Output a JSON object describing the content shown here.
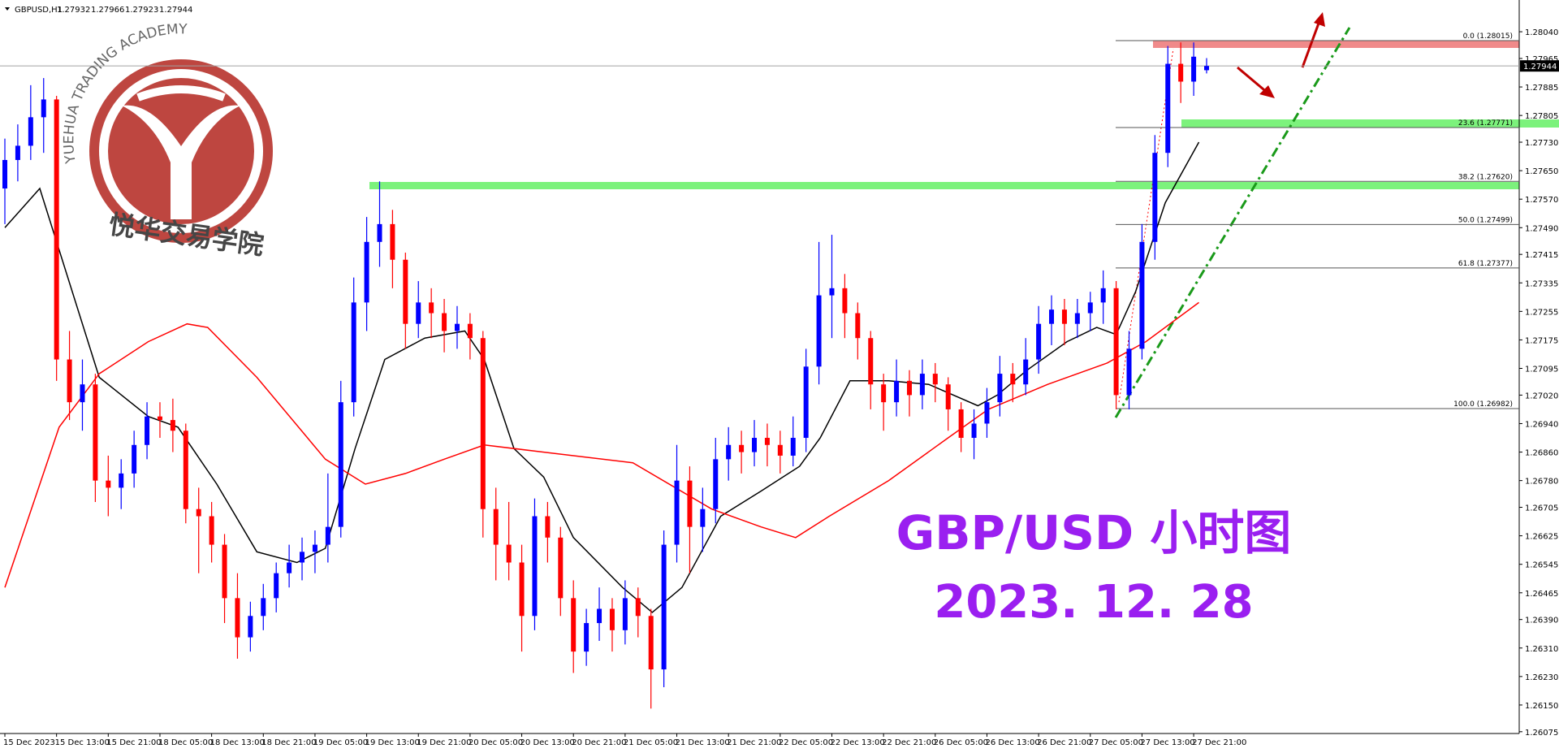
{
  "header": {
    "symbol": "GBPUSD,H1",
    "ohlc": [
      1.27932,
      1.27966,
      1.27923,
      1.27944
    ]
  },
  "watermark": {
    "academy": "YUEHUA TRADING ACADEMY",
    "academy_cn": "悦华交易学院"
  },
  "chart_data": {
    "type": "candlestick",
    "title": "GBP/USD 小时图",
    "subtitle": "2023. 12. 28",
    "up_color": "#0000ff",
    "down_color": "#ff0000",
    "candles": [
      [
        1.276,
        1.2774,
        1.275,
        1.2768
      ],
      [
        1.2768,
        1.2778,
        1.2762,
        1.2772
      ],
      [
        1.2772,
        1.2789,
        1.2768,
        1.278
      ],
      [
        1.278,
        1.2791,
        1.277,
        1.2785
      ],
      [
        1.2785,
        1.2786,
        1.2706,
        1.2712
      ],
      [
        1.2712,
        1.272,
        1.2695,
        1.27
      ],
      [
        1.27,
        1.2712,
        1.2692,
        1.2705
      ],
      [
        1.2705,
        1.2708,
        1.2672,
        1.2678
      ],
      [
        1.2678,
        1.2685,
        1.2668,
        1.2676
      ],
      [
        1.2676,
        1.2684,
        1.267,
        1.268
      ],
      [
        1.268,
        1.2692,
        1.2676,
        1.2688
      ],
      [
        1.2688,
        1.27,
        1.2684,
        1.2696
      ],
      [
        1.2696,
        1.27,
        1.269,
        1.2695
      ],
      [
        1.2695,
        1.2701,
        1.2686,
        1.2692
      ],
      [
        1.2692,
        1.2694,
        1.2666,
        1.267
      ],
      [
        1.267,
        1.2676,
        1.2652,
        1.2668
      ],
      [
        1.2668,
        1.2672,
        1.2655,
        1.266
      ],
      [
        1.266,
        1.2663,
        1.2638,
        1.2645
      ],
      [
        1.2645,
        1.2652,
        1.2628,
        1.2634
      ],
      [
        1.2634,
        1.2644,
        1.263,
        1.264
      ],
      [
        1.264,
        1.2649,
        1.2636,
        1.2645
      ],
      [
        1.2645,
        1.2655,
        1.2641,
        1.2652
      ],
      [
        1.2652,
        1.266,
        1.2648,
        1.2655
      ],
      [
        1.2655,
        1.2662,
        1.265,
        1.2658
      ],
      [
        1.2658,
        1.2664,
        1.2652,
        1.266
      ],
      [
        1.266,
        1.268,
        1.2655,
        1.2665
      ],
      [
        1.2665,
        1.2706,
        1.2662,
        1.27
      ],
      [
        1.27,
        1.2735,
        1.2696,
        1.2728
      ],
      [
        1.2728,
        1.2752,
        1.272,
        1.2745
      ],
      [
        1.2745,
        1.2762,
        1.2738,
        1.275
      ],
      [
        1.275,
        1.2754,
        1.2732,
        1.274
      ],
      [
        1.274,
        1.2742,
        1.2715,
        1.2722
      ],
      [
        1.2722,
        1.2734,
        1.2718,
        1.2728
      ],
      [
        1.2728,
        1.2732,
        1.2718,
        1.2725
      ],
      [
        1.2725,
        1.2729,
        1.2714,
        1.272
      ],
      [
        1.272,
        1.2727,
        1.2715,
        1.2722
      ],
      [
        1.2722,
        1.2725,
        1.2712,
        1.2718
      ],
      [
        1.2718,
        1.272,
        1.2662,
        1.267
      ],
      [
        1.267,
        1.2676,
        1.265,
        1.266
      ],
      [
        1.266,
        1.2672,
        1.265,
        1.2655
      ],
      [
        1.2655,
        1.266,
        1.263,
        1.264
      ],
      [
        1.264,
        1.2673,
        1.2636,
        1.2668
      ],
      [
        1.2668,
        1.2672,
        1.2655,
        1.2662
      ],
      [
        1.2662,
        1.2665,
        1.264,
        1.2645
      ],
      [
        1.2645,
        1.265,
        1.2624,
        1.263
      ],
      [
        1.263,
        1.2642,
        1.2626,
        1.2638
      ],
      [
        1.2638,
        1.2648,
        1.2633,
        1.2642
      ],
      [
        1.2642,
        1.2645,
        1.263,
        1.2636
      ],
      [
        1.2636,
        1.265,
        1.2632,
        1.2645
      ],
      [
        1.2645,
        1.2648,
        1.2634,
        1.264
      ],
      [
        1.264,
        1.2642,
        1.2614,
        1.2625
      ],
      [
        1.2625,
        1.2664,
        1.262,
        1.266
      ],
      [
        1.266,
        1.2688,
        1.2655,
        1.2678
      ],
      [
        1.2678,
        1.2682,
        1.2652,
        1.2665
      ],
      [
        1.2665,
        1.2676,
        1.2658,
        1.267
      ],
      [
        1.267,
        1.269,
        1.2666,
        1.2684
      ],
      [
        1.2684,
        1.2693,
        1.2678,
        1.2688
      ],
      [
        1.2688,
        1.2692,
        1.268,
        1.2686
      ],
      [
        1.2686,
        1.2695,
        1.2682,
        1.269
      ],
      [
        1.269,
        1.2694,
        1.2682,
        1.2688
      ],
      [
        1.2688,
        1.2692,
        1.268,
        1.2685
      ],
      [
        1.2685,
        1.2696,
        1.2682,
        1.269
      ],
      [
        1.269,
        1.2715,
        1.2686,
        1.271
      ],
      [
        1.271,
        1.2745,
        1.2705,
        1.273
      ],
      [
        1.273,
        1.2747,
        1.2718,
        1.2732
      ],
      [
        1.2732,
        1.2736,
        1.2718,
        1.2725
      ],
      [
        1.2725,
        1.2728,
        1.2712,
        1.2718
      ],
      [
        1.2718,
        1.272,
        1.2698,
        1.2705
      ],
      [
        1.2705,
        1.2708,
        1.2692,
        1.27
      ],
      [
        1.27,
        1.2712,
        1.2696,
        1.2706
      ],
      [
        1.2706,
        1.2709,
        1.2696,
        1.2702
      ],
      [
        1.2702,
        1.2712,
        1.2698,
        1.2708
      ],
      [
        1.2708,
        1.2711,
        1.27,
        1.2705
      ],
      [
        1.2705,
        1.2707,
        1.2692,
        1.2698
      ],
      [
        1.2698,
        1.27,
        1.2686,
        1.269
      ],
      [
        1.269,
        1.2698,
        1.2684,
        1.2694
      ],
      [
        1.2694,
        1.2704,
        1.269,
        1.27
      ],
      [
        1.27,
        1.2713,
        1.2696,
        1.2708
      ],
      [
        1.2708,
        1.2711,
        1.27,
        1.2705
      ],
      [
        1.2705,
        1.2718,
        1.2702,
        1.2712
      ],
      [
        1.2712,
        1.2727,
        1.2708,
        1.2722
      ],
      [
        1.2722,
        1.273,
        1.2716,
        1.2726
      ],
      [
        1.2726,
        1.2729,
        1.2716,
        1.2722
      ],
      [
        1.2722,
        1.2729,
        1.2718,
        1.2725
      ],
      [
        1.2725,
        1.2731,
        1.272,
        1.2728
      ],
      [
        1.2728,
        1.2737,
        1.2722,
        1.2732
      ],
      [
        1.2732,
        1.2734,
        1.2698,
        1.2702
      ],
      [
        1.2702,
        1.272,
        1.2698,
        1.2715
      ],
      [
        1.2715,
        1.275,
        1.2712,
        1.2745
      ],
      [
        1.2745,
        1.2775,
        1.274,
        1.277
      ],
      [
        1.277,
        1.28,
        1.2766,
        1.2795
      ],
      [
        1.2795,
        1.2801,
        1.2784,
        1.279
      ],
      [
        1.279,
        1.2801,
        1.2786,
        1.2797
      ],
      [
        1.27932,
        1.27966,
        1.27923,
        1.27944
      ]
    ],
    "series": [
      {
        "color": "#000000",
        "x": [
          0,
          2.7,
          7.3,
          11.1,
          13.4,
          16.4,
          19.5,
          22.6,
          24.8,
          27.1,
          29.4,
          32.5,
          35.6,
          37.1,
          39.4,
          41.7,
          44,
          47.8,
          50.1,
          52.4,
          55.4,
          58.5,
          61.5,
          63.1,
          65.4,
          68.4,
          71.5,
          75.3,
          76.8,
          79.1,
          82.2,
          84.5,
          86,
          87.5,
          89.8,
          92.4
        ],
        "values": [
          1.2749,
          1.276,
          1.2707,
          1.2696,
          1.2693,
          1.2677,
          1.2658,
          1.2655,
          1.2659,
          1.2687,
          1.2712,
          1.2718,
          1.272,
          1.2712,
          1.2687,
          1.2679,
          1.2662,
          1.2648,
          1.2641,
          1.2648,
          1.2668,
          1.2675,
          1.2682,
          1.269,
          1.2706,
          1.2706,
          1.2705,
          1.2699,
          1.2702,
          1.2709,
          1.2717,
          1.2721,
          1.2719,
          1.2731,
          1.2756,
          1.2773
        ]
      },
      {
        "color": "#ff0000",
        "x": [
          0,
          4.2,
          7.3,
          11.1,
          14.1,
          15.7,
          19.5,
          24.8,
          27.9,
          31,
          34,
          37.1,
          41.7,
          48.6,
          54.7,
          58.5,
          61.2,
          63.8,
          68.4,
          73,
          76.1,
          80.7,
          85.3,
          88.3,
          92.4
        ],
        "values": [
          1.2648,
          1.2693,
          1.2708,
          1.2717,
          1.2722,
          1.2721,
          1.2707,
          1.2684,
          1.2677,
          1.268,
          1.2684,
          1.2688,
          1.2686,
          1.2683,
          1.267,
          1.2665,
          1.2662,
          1.2668,
          1.2678,
          1.269,
          1.2698,
          1.2705,
          1.2711,
          1.2717,
          1.2728
        ]
      }
    ],
    "ylim": [
      1.2607,
      1.2812
    ],
    "yticks": [
      {
        "value": 1.2804,
        "label": "1.28040"
      },
      {
        "value": 1.27965,
        "label": "1.27965"
      },
      {
        "value": 1.27885,
        "label": "1.27885"
      },
      {
        "value": 1.27805,
        "label": "1.27805"
      },
      {
        "value": 1.2773,
        "label": "1.27730"
      },
      {
        "value": 1.2765,
        "label": "1.27650"
      },
      {
        "value": 1.2757,
        "label": "1.27570"
      },
      {
        "value": 1.2749,
        "label": "1.27490"
      },
      {
        "value": 1.27415,
        "label": "1.27415"
      },
      {
        "value": 1.27335,
        "label": "1.27335"
      },
      {
        "value": 1.27255,
        "label": "1.27255"
      },
      {
        "value": 1.27175,
        "label": "1.27175"
      },
      {
        "value": 1.27095,
        "label": "1.27095"
      },
      {
        "value": 1.2702,
        "label": "1.27020"
      },
      {
        "value": 1.2694,
        "label": "1.26940"
      },
      {
        "value": 1.2686,
        "label": "1.26860"
      },
      {
        "value": 1.2678,
        "label": "1.26780"
      },
      {
        "value": 1.26705,
        "label": "1.26705"
      },
      {
        "value": 1.26625,
        "label": "1.26625"
      },
      {
        "value": 1.26545,
        "label": "1.26545"
      },
      {
        "value": 1.26465,
        "label": "1.26465"
      },
      {
        "value": 1.2639,
        "label": "1.26390"
      },
      {
        "value": 1.2631,
        "label": "1.26310"
      },
      {
        "value": 1.2623,
        "label": "1.26230"
      },
      {
        "value": 1.2615,
        "label": "1.26150"
      },
      {
        "value": 1.26075,
        "label": "1.26075"
      }
    ],
    "xticks": [
      {
        "value": 0,
        "label": "15 Dec 2023"
      },
      {
        "value": 4,
        "label": "15 Dec 13:00"
      },
      {
        "value": 8,
        "label": "15 Dec 21:00"
      },
      {
        "value": 12,
        "label": "18 Dec 05:00"
      },
      {
        "value": 16,
        "label": "18 Dec 13:00"
      },
      {
        "value": 20,
        "label": "18 Dec 21:00"
      },
      {
        "value": 24,
        "label": "19 Dec 05:00"
      },
      {
        "value": 28,
        "label": "19 Dec 13:00"
      },
      {
        "value": 32,
        "label": "19 Dec 21:00"
      },
      {
        "value": 36,
        "label": "20 Dec 05:00"
      },
      {
        "value": 40,
        "label": "20 Dec 13:00"
      },
      {
        "value": 44,
        "label": "20 Dec 21:00"
      },
      {
        "value": 48,
        "label": "21 Dec 05:00"
      },
      {
        "value": 52,
        "label": "21 Dec 13:00"
      },
      {
        "value": 56,
        "label": "21 Dec 21:00"
      },
      {
        "value": 60,
        "label": "22 Dec 05:00"
      },
      {
        "value": 64,
        "label": "22 Dec 13:00"
      },
      {
        "value": 68,
        "label": "22 Dec 21:00"
      },
      {
        "value": 72,
        "label": "26 Dec 05:00"
      },
      {
        "value": 76,
        "label": "26 Dec 13:00"
      },
      {
        "value": 80,
        "label": "26 Dec 21:00"
      },
      {
        "value": 84,
        "label": "27 Dec 05:00"
      },
      {
        "value": 88,
        "label": "27 Dec 13:00"
      },
      {
        "value": 92,
        "label": "27 Dec 21:00"
      }
    ],
    "last_price": 1.27944,
    "fib_levels": [
      {
        "value": 1.28015,
        "label": "0.0 (1.28015)"
      },
      {
        "value": 1.27771,
        "label": "23.6 (1.27771)"
      },
      {
        "value": 1.2762,
        "label": "38.2 (1.27620)"
      },
      {
        "value": 1.27499,
        "label": "50.0 (1.27499)"
      },
      {
        "value": 1.27377,
        "label": "61.8 (1.27377)"
      },
      {
        "value": 1.26982,
        "label": "100.0 (1.26982)"
      }
    ]
  }
}
